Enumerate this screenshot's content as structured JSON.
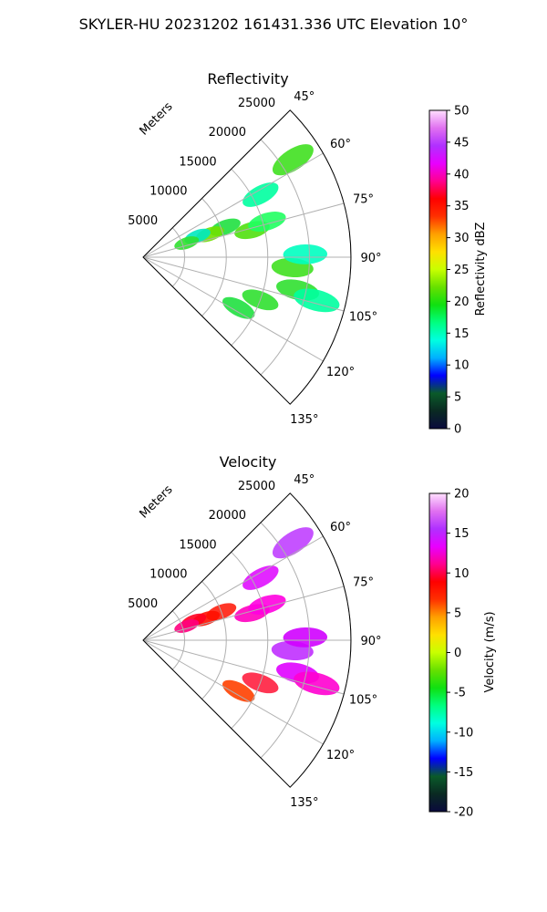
{
  "figure": {
    "suptitle": "SKYLER-HU  20231202  161431.336 UTC Elevation 10°"
  },
  "chart_data": [
    {
      "type": "polar-sector",
      "title": "Reflectivity",
      "range_label": "Meters",
      "range_ticks": [
        5000,
        10000,
        15000,
        20000,
        25000
      ],
      "range_max": 25000,
      "azimuth_ticks": [
        "45°",
        "60°",
        "75°",
        "90°",
        "105°",
        "120°",
        "135°"
      ],
      "azimuth_range": [
        45,
        135
      ],
      "colorbar": {
        "label": "Reflectivity dBZ",
        "ticks": [
          0,
          5,
          10,
          15,
          20,
          25,
          30,
          35,
          40,
          45,
          50
        ],
        "range": [
          0,
          50
        ],
        "stops": [
          "#0a0a3c",
          "#0a2a22",
          "#0a5a2a",
          "#0000ff",
          "#00b0ff",
          "#00ffe0",
          "#00ff80",
          "#10e010",
          "#66e000",
          "#c8ff00",
          "#ffe000",
          "#ffa000",
          "#ff3000",
          "#ff0000",
          "#ff0090",
          "#e800ff",
          "#b030ff",
          "#e070f0",
          "#ffe0ff"
        ]
      },
      "echoes": [
        {
          "az": 70,
          "r": 10500,
          "color": "#20e040"
        },
        {
          "az": 71,
          "r": 8500,
          "color": "#70e000"
        },
        {
          "az": 69,
          "r": 7000,
          "color": "#00e8c0"
        },
        {
          "az": 72,
          "r": 5500,
          "color": "#30e030"
        },
        {
          "az": 76,
          "r": 13500,
          "color": "#50e010"
        },
        {
          "az": 74,
          "r": 15500,
          "color": "#20ff60"
        },
        {
          "az": 62,
          "r": 16000,
          "color": "#00ffa0"
        },
        {
          "az": 57,
          "r": 21500,
          "color": "#40e020"
        },
        {
          "az": 94,
          "r": 18000,
          "color": "#40e020"
        },
        {
          "az": 89,
          "r": 19500,
          "color": "#00ffc0"
        },
        {
          "az": 102,
          "r": 19000,
          "color": "#30e030"
        },
        {
          "az": 104,
          "r": 21500,
          "color": "#00ffa0"
        },
        {
          "az": 110,
          "r": 15000,
          "color": "#30e030"
        },
        {
          "az": 118,
          "r": 13000,
          "color": "#20e040"
        }
      ]
    },
    {
      "type": "polar-sector",
      "title": "Velocity",
      "range_label": "Meters",
      "range_ticks": [
        5000,
        10000,
        15000,
        20000,
        25000
      ],
      "range_max": 25000,
      "azimuth_ticks": [
        "45°",
        "60°",
        "75°",
        "90°",
        "105°",
        "120°",
        "135°"
      ],
      "azimuth_range": [
        45,
        135
      ],
      "colorbar": {
        "label": "Velocity (m/s)",
        "ticks": [
          -20,
          -15,
          -10,
          -5,
          0,
          5,
          10,
          15,
          20
        ],
        "range": [
          -20,
          20
        ],
        "stops": [
          "#0a0a3c",
          "#0a2a22",
          "#0a5a2a",
          "#0000ff",
          "#00b0ff",
          "#00ffe0",
          "#00ff80",
          "#10e010",
          "#66e000",
          "#c8ff00",
          "#ffe000",
          "#ffa000",
          "#ff3000",
          "#ff0000",
          "#ff0090",
          "#e800ff",
          "#b030ff",
          "#e070f0",
          "#ffe0ff"
        ]
      },
      "echoes": [
        {
          "az": 70,
          "r": 10000,
          "color": "#ff2010"
        },
        {
          "az": 71,
          "r": 8000,
          "color": "#ff1000"
        },
        {
          "az": 69,
          "r": 6500,
          "color": "#ff0020"
        },
        {
          "az": 72,
          "r": 5500,
          "color": "#ff0080"
        },
        {
          "az": 76,
          "r": 13500,
          "color": "#ff00c0"
        },
        {
          "az": 74,
          "r": 15500,
          "color": "#ff00e0"
        },
        {
          "az": 62,
          "r": 16000,
          "color": "#e010ff"
        },
        {
          "az": 57,
          "r": 21500,
          "color": "#c040ff"
        },
        {
          "az": 94,
          "r": 18000,
          "color": "#c030ff"
        },
        {
          "az": 89,
          "r": 19500,
          "color": "#d000ff"
        },
        {
          "az": 102,
          "r": 19000,
          "color": "#e000ff"
        },
        {
          "az": 104,
          "r": 21500,
          "color": "#ff00d0"
        },
        {
          "az": 110,
          "r": 15000,
          "color": "#ff2040"
        },
        {
          "az": 118,
          "r": 13000,
          "color": "#ff4000"
        }
      ]
    }
  ]
}
